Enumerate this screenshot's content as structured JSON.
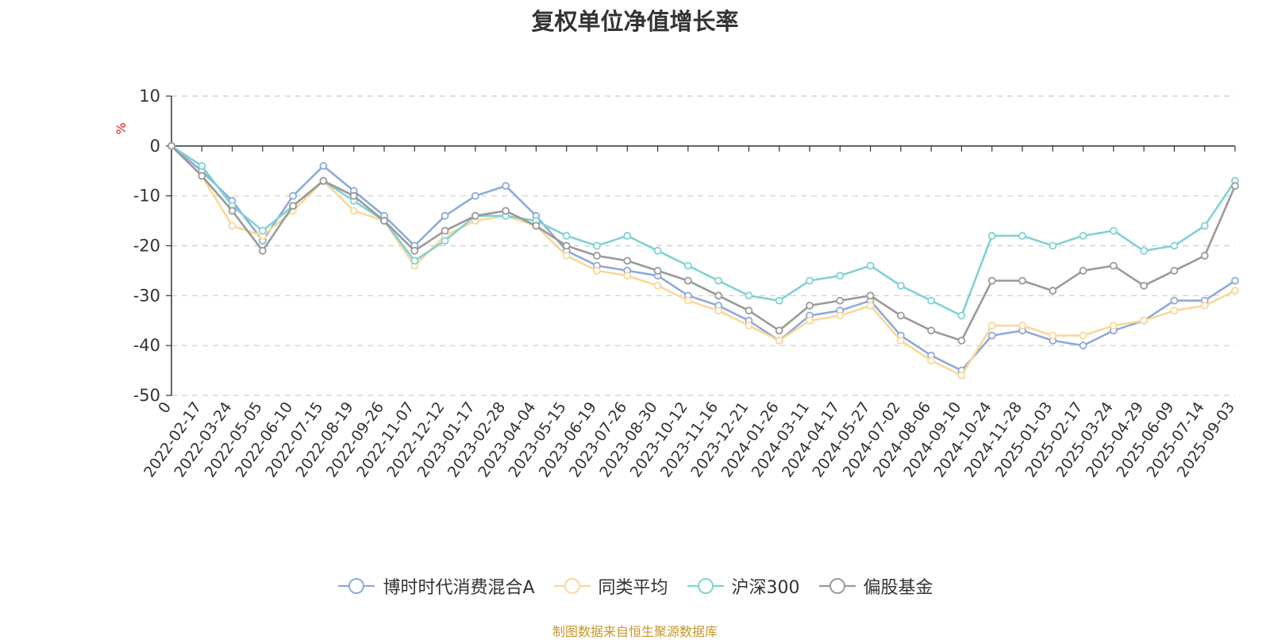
{
  "chart_data": {
    "type": "line",
    "title": "复权单位净值增长率",
    "ylabel": "%",
    "ylim": [
      -50,
      10
    ],
    "yticks": [
      10,
      0,
      -10,
      -20,
      -30,
      -40,
      -50
    ],
    "grid": true,
    "legend_position": "bottom",
    "x": [
      "0",
      "2022-02-17",
      "2022-03-24",
      "2022-05-05",
      "2022-06-10",
      "2022-07-15",
      "2022-08-19",
      "2022-09-26",
      "2022-11-07",
      "2022-12-12",
      "2023-01-17",
      "2023-02-28",
      "2023-04-04",
      "2023-05-15",
      "2023-06-19",
      "2023-07-26",
      "2023-08-30",
      "2023-10-12",
      "2023-11-16",
      "2023-12-21",
      "2024-01-26",
      "2024-03-11",
      "2024-04-17",
      "2024-05-27",
      "2024-07-02",
      "2024-08-06",
      "2024-09-10",
      "2024-10-24",
      "2024-11-28",
      "2025-01-03",
      "2025-02-17",
      "2025-03-24",
      "2025-04-29",
      "2025-06-09",
      "2025-07-14",
      "2025-09-03"
    ],
    "series": [
      {
        "name": "博时时代消费混合A",
        "color": "#8eaad9",
        "values": [
          0,
          -5,
          -11,
          -19,
          -10,
          -4,
          -9,
          -14,
          -20,
          -14,
          -10,
          -8,
          -14,
          -21,
          -24,
          -25,
          -26,
          -30,
          -32,
          -35,
          -39,
          -34,
          -33,
          -31,
          -38,
          -42,
          -45,
          -38,
          -37,
          -39,
          -40,
          -37,
          -35,
          -31,
          -31,
          -27
        ]
      },
      {
        "name": "同类平均",
        "color": "#f9d898",
        "values": [
          0,
          -6,
          -16,
          -18,
          -13,
          -7,
          -13,
          -15,
          -24,
          -18,
          -15,
          -14,
          -16,
          -22,
          -25,
          -26,
          -28,
          -31,
          -33,
          -36,
          -39,
          -35,
          -34,
          -32,
          -39,
          -43,
          -46,
          -36,
          -36,
          -38,
          -38,
          -36,
          -35,
          -33,
          -32,
          -29
        ]
      },
      {
        "name": "沪深300",
        "color": "#80d2d4",
        "values": [
          0,
          -4,
          -12,
          -17,
          -12,
          -7,
          -11,
          -15,
          -23,
          -19,
          -14,
          -14,
          -15,
          -18,
          -20,
          -18,
          -21,
          -24,
          -27,
          -30,
          -31,
          -27,
          -26,
          -24,
          -28,
          -31,
          -34,
          -18,
          -18,
          -20,
          -18,
          -17,
          -21,
          -20,
          -16,
          -7
        ]
      },
      {
        "name": "偏股基金",
        "color": "#9a9a9a",
        "values": [
          0,
          -6,
          -13,
          -21,
          -12,
          -7,
          -10,
          -15,
          -21,
          -17,
          -14,
          -13,
          -16,
          -20,
          -22,
          -23,
          -25,
          -27,
          -30,
          -33,
          -37,
          -32,
          -31,
          -30,
          -34,
          -37,
          -39,
          -27,
          -27,
          -29,
          -25,
          -24,
          -28,
          -25,
          -22,
          -8
        ]
      }
    ]
  },
  "source_note": "制图数据来自恒生聚源数据库"
}
